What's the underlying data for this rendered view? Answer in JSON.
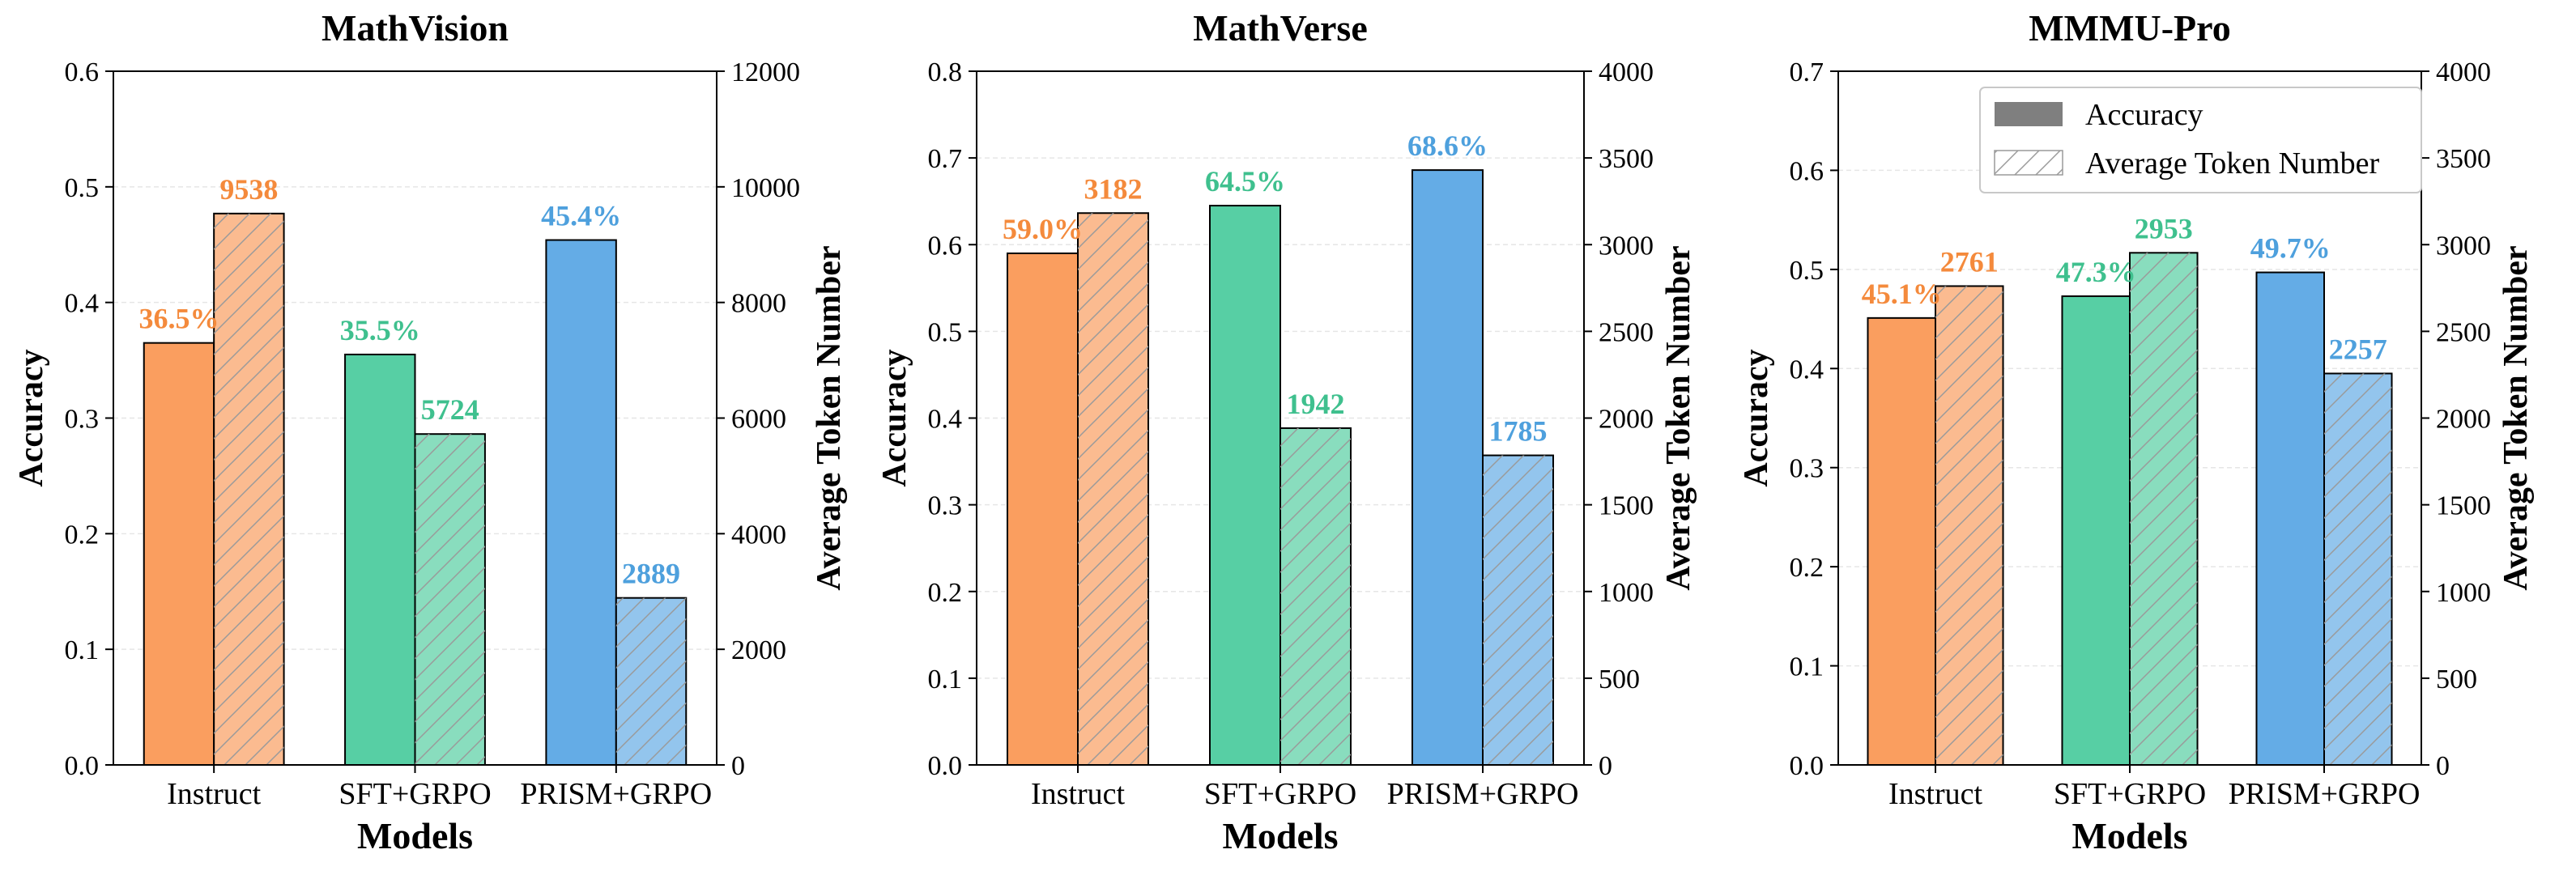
{
  "colors": {
    "instruct": "#fa9e5f",
    "instruct_token": "#fbbb90",
    "sft": "#57cfa4",
    "sft_token": "#89ddbe",
    "prism": "#64ace6",
    "prism_token": "#93c5ed",
    "instruct_label": "#f48a3c",
    "sft_label": "#3fc08e",
    "prism_label": "#4ea0dd"
  },
  "legend": {
    "accuracy": "Accuracy",
    "tokens": "Average Token Number"
  },
  "chart_data": [
    {
      "type": "bar",
      "title": "MathVision",
      "xlabel": "Models",
      "ylabel": "Accuracy",
      "y2label": "Average Token Number",
      "categories": [
        "Instruct",
        "SFT+GRPO",
        "PRISM+GRPO"
      ],
      "ylim": [
        0,
        0.6
      ],
      "yticks": [
        "0.0",
        "0.1",
        "0.2",
        "0.3",
        "0.4",
        "0.5",
        "0.6"
      ],
      "y2lim": [
        0,
        12000
      ],
      "y2ticks": [
        "0",
        "2000",
        "4000",
        "6000",
        "8000",
        "10000",
        "12000"
      ],
      "series": [
        {
          "name": "Accuracy",
          "values": [
            0.365,
            0.355,
            0.454
          ],
          "labels": [
            "36.5%",
            "35.5%",
            "45.4%"
          ]
        },
        {
          "name": "Average Token Number",
          "values": [
            9538,
            5724,
            2889
          ],
          "labels": [
            "9538",
            "5724",
            "2889"
          ]
        }
      ]
    },
    {
      "type": "bar",
      "title": "MathVerse",
      "xlabel": "Models",
      "ylabel": "Accuracy",
      "y2label": "Average Token Number",
      "categories": [
        "Instruct",
        "SFT+GRPO",
        "PRISM+GRPO"
      ],
      "ylim": [
        0,
        0.8
      ],
      "yticks": [
        "0.0",
        "0.1",
        "0.2",
        "0.3",
        "0.4",
        "0.5",
        "0.6",
        "0.7",
        "0.8"
      ],
      "y2lim": [
        0,
        4000
      ],
      "y2ticks": [
        "0",
        "500",
        "1000",
        "1500",
        "2000",
        "2500",
        "3000",
        "3500",
        "4000"
      ],
      "series": [
        {
          "name": "Accuracy",
          "values": [
            0.59,
            0.645,
            0.686
          ],
          "labels": [
            "59.0%",
            "64.5%",
            "68.6%"
          ]
        },
        {
          "name": "Average Token Number",
          "values": [
            3182,
            1942,
            1785
          ],
          "labels": [
            "3182",
            "1942",
            "1785"
          ]
        }
      ]
    },
    {
      "type": "bar",
      "title": "MMMU-Pro",
      "xlabel": "Models",
      "ylabel": "Accuracy",
      "y2label": "Average Token Number",
      "categories": [
        "Instruct",
        "SFT+GRPO",
        "PRISM+GRPO"
      ],
      "ylim": [
        0,
        0.7
      ],
      "yticks": [
        "0.0",
        "0.1",
        "0.2",
        "0.3",
        "0.4",
        "0.5",
        "0.6",
        "0.7"
      ],
      "y2lim": [
        0,
        4000
      ],
      "y2ticks": [
        "0",
        "500",
        "1000",
        "1500",
        "2000",
        "2500",
        "3000",
        "3500",
        "4000"
      ],
      "legend_placement": "top-right",
      "series": [
        {
          "name": "Accuracy",
          "values": [
            0.451,
            0.473,
            0.497
          ],
          "labels": [
            "45.1%",
            "47.3%",
            "49.7%"
          ]
        },
        {
          "name": "Average Token Number",
          "values": [
            2761,
            2953,
            2257
          ],
          "labels": [
            "2761",
            "2953",
            "2257"
          ]
        }
      ]
    }
  ]
}
